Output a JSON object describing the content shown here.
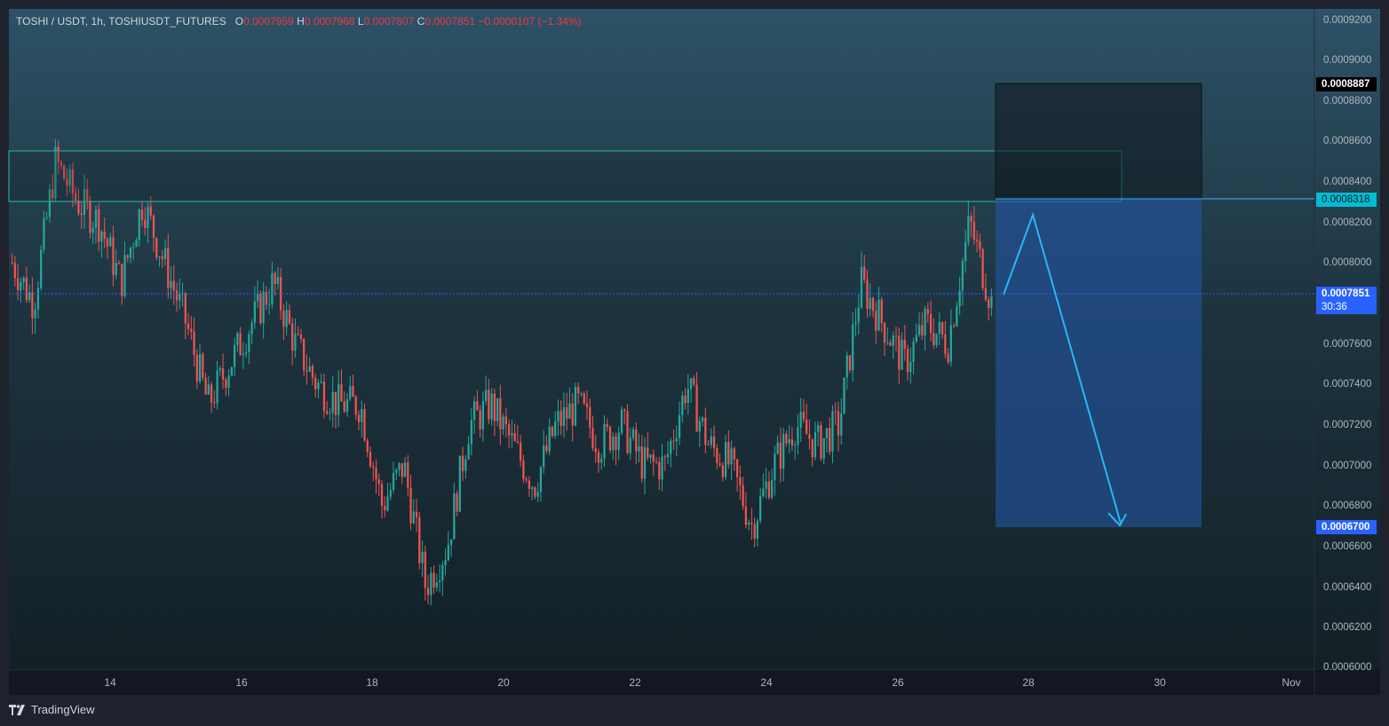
{
  "header": {
    "symbol": "TOSHI / USDT, 1h, TOSHIUSDT_FUTURES",
    "open_key": "O",
    "open": "0.0007959",
    "high_key": "H",
    "high": "0.0007968",
    "low_key": "L",
    "low": "0.0007807",
    "close_key": "C",
    "close": "0.0007851",
    "change": "−0.0000107 (−1.34%)"
  },
  "price_axis": {
    "ticks": [
      "0.0009200",
      "0.0009000",
      "0.0008800",
      "0.0008600",
      "0.0008400",
      "0.0008200",
      "0.0008000",
      "0.0007600",
      "0.0007400",
      "0.0007200",
      "0.0007000",
      "0.0006800",
      "0.0006600",
      "0.0006400",
      "0.0006200",
      "0.0006000"
    ],
    "stop_label": "0.0008887",
    "entry_label": "0.0008318",
    "current_price": "0.0007851",
    "countdown": "30:36",
    "target_label": "0.0006700"
  },
  "time_axis": {
    "labels": [
      "14",
      "16",
      "18",
      "20",
      "22",
      "24",
      "26",
      "28",
      "30",
      "Nov"
    ]
  },
  "footer": {
    "brand": "TradingView"
  },
  "colors": {
    "up": "#26a69a",
    "down": "#ef5350",
    "zone": "#26a69a",
    "target_box": "#1e4a8a",
    "stop_box": "#182a33",
    "arrow": "#29b6f6"
  },
  "chart_data": {
    "type": "candlestick",
    "title": "TOSHI / USDT, 1h, TOSHIUSDT_FUTURES",
    "ylim": [
      0.0006,
      0.00092
    ],
    "x_labels": [
      "14",
      "16",
      "18",
      "20",
      "22",
      "24",
      "26",
      "28",
      "30",
      "Nov"
    ],
    "series": [
      {
        "values": [
          0.0008,
          0.00078,
          0.00085,
          0.00083,
          0.00082,
          0.00079,
          0.00083,
          0.0008,
          0.00077,
          0.00073,
          0.00075,
          0.00077,
          0.00079,
          0.00076,
          0.00074,
          0.00073,
          0.00073,
          0.00068,
          0.0007,
          0.00064,
          0.00066,
          0.00072,
          0.00073,
          0.00071,
          0.00069,
          0.00072,
          0.00073,
          0.00071,
          0.00072,
          0.0007,
          0.0007,
          0.00074,
          0.00071,
          0.0007,
          0.00067,
          0.0007,
          0.00072,
          0.00071,
          0.00072,
          0.00079,
          0.00077,
          0.00075,
          0.00077,
          0.00076,
          0.00082,
          0.00078
        ]
      }
    ],
    "levels": {
      "current": 0.0007851,
      "zone_top": 0.000856,
      "zone_bottom": 0.0008318,
      "stop": 0.0008887,
      "target": 0.00067
    }
  }
}
